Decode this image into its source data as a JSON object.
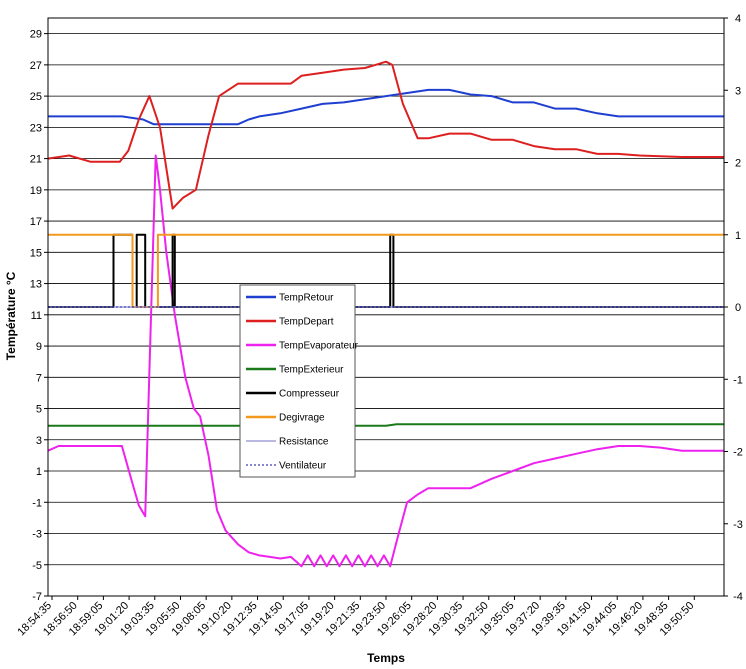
{
  "chart_data": {
    "type": "line",
    "xlabel": "Temps",
    "ylabel": "Température °C",
    "ylim": [
      -7,
      30
    ],
    "y2lim": [
      -4,
      4
    ],
    "yticks": [
      "-7",
      "-5",
      "-3",
      "-1",
      "1",
      "3",
      "5",
      "7",
      "9",
      "11",
      "13",
      "15",
      "17",
      "19",
      "21",
      "23",
      "25",
      "27",
      "29"
    ],
    "y2ticks": [
      "-4",
      "-3",
      "-2",
      "-1",
      "0",
      "1",
      "2",
      "3",
      "4"
    ],
    "x_tick_labels": [
      "18:54:35",
      "18:56:50",
      "18:59:05",
      "19:01:20",
      "19:03:35",
      "19:05:50",
      "19:08:05",
      "19:10:20",
      "19:12:35",
      "19:14:50",
      "19:17:05",
      "19:19:20",
      "19:21:35",
      "19:23:50",
      "19:26:05",
      "19:28:20",
      "19:30:35",
      "19:32:50",
      "19:35:05",
      "19:37:20",
      "19:39:35",
      "19:41:50",
      "19:44:05",
      "19:46:20",
      "19:48:35",
      "19:50:50"
    ],
    "grid": "horizontal",
    "legend_position": "center-left",
    "series": [
      {
        "name": "TempRetour",
        "color": "#1f3fd0",
        "axis": "left",
        "style": "solid",
        "points": [
          [
            0,
            23.7
          ],
          [
            3.5,
            23.7
          ],
          [
            4.5,
            23.5
          ],
          [
            5,
            23.2
          ],
          [
            9,
            23.2
          ],
          [
            9.5,
            23.5
          ],
          [
            10,
            23.7
          ],
          [
            11,
            23.9
          ],
          [
            12,
            24.2
          ],
          [
            13,
            24.5
          ],
          [
            14,
            24.6
          ],
          [
            15,
            24.8
          ],
          [
            16,
            25.0
          ],
          [
            17,
            25.2
          ],
          [
            18,
            25.4
          ],
          [
            19,
            25.4
          ],
          [
            20,
            25.1
          ],
          [
            21,
            25.0
          ],
          [
            22,
            24.6
          ],
          [
            23,
            24.6
          ],
          [
            24,
            24.2
          ],
          [
            25,
            24.2
          ],
          [
            26,
            23.9
          ],
          [
            27,
            23.7
          ],
          [
            32,
            23.7
          ]
        ]
      },
      {
        "name": "TempDepart",
        "color": "#dd1f1f",
        "axis": "left",
        "style": "solid",
        "points": [
          [
            0,
            21.0
          ],
          [
            1,
            21.2
          ],
          [
            2,
            20.8
          ],
          [
            3.4,
            20.8
          ],
          [
            3.8,
            21.5
          ],
          [
            4.3,
            23.5
          ],
          [
            4.8,
            25.0
          ],
          [
            5.3,
            23.0
          ],
          [
            5.9,
            17.8
          ],
          [
            6.4,
            18.5
          ],
          [
            7,
            19.0
          ],
          [
            7.6,
            22.5
          ],
          [
            8.1,
            25.0
          ],
          [
            9,
            25.8
          ],
          [
            11.5,
            25.8
          ],
          [
            12,
            26.3
          ],
          [
            13,
            26.5
          ],
          [
            14,
            26.7
          ],
          [
            15,
            26.8
          ],
          [
            15.5,
            27.0
          ],
          [
            16,
            27.2
          ],
          [
            16.3,
            27.0
          ],
          [
            16.8,
            24.5
          ],
          [
            17.5,
            22.3
          ],
          [
            18,
            22.3
          ],
          [
            19,
            22.6
          ],
          [
            20,
            22.6
          ],
          [
            21,
            22.2
          ],
          [
            22,
            22.2
          ],
          [
            23,
            21.8
          ],
          [
            24,
            21.6
          ],
          [
            25,
            21.6
          ],
          [
            26,
            21.3
          ],
          [
            27,
            21.3
          ],
          [
            28,
            21.2
          ],
          [
            30,
            21.1
          ],
          [
            32,
            21.1
          ]
        ]
      },
      {
        "name": "TempEvaporateur",
        "color": "#ee22ee",
        "axis": "left",
        "style": "solid",
        "points": [
          [
            0,
            2.3
          ],
          [
            0.5,
            2.6
          ],
          [
            3.5,
            2.6
          ],
          [
            4,
            0.2
          ],
          [
            4.3,
            -1.2
          ],
          [
            4.6,
            -1.9
          ],
          [
            4.9,
            12.0
          ],
          [
            5.1,
            21.2
          ],
          [
            5.3,
            19.0
          ],
          [
            5.6,
            15.0
          ],
          [
            6,
            11.0
          ],
          [
            6.5,
            7.0
          ],
          [
            6.9,
            5.0
          ],
          [
            7.2,
            4.5
          ],
          [
            7.6,
            2.0
          ],
          [
            8,
            -1.5
          ],
          [
            8.4,
            -2.8
          ],
          [
            9,
            -3.7
          ],
          [
            9.5,
            -4.2
          ],
          [
            10,
            -4.4
          ],
          [
            10.5,
            -4.5
          ],
          [
            11,
            -4.6
          ],
          [
            11.5,
            -4.5
          ],
          [
            12,
            -5.1
          ],
          [
            12.3,
            -4.4
          ],
          [
            12.6,
            -5.1
          ],
          [
            12.9,
            -4.4
          ],
          [
            13.2,
            -5.1
          ],
          [
            13.5,
            -4.4
          ],
          [
            13.8,
            -5.1
          ],
          [
            14.1,
            -4.4
          ],
          [
            14.4,
            -5.1
          ],
          [
            14.7,
            -4.4
          ],
          [
            15,
            -5.1
          ],
          [
            15.3,
            -4.4
          ],
          [
            15.6,
            -5.1
          ],
          [
            15.9,
            -4.4
          ],
          [
            16.2,
            -5.1
          ],
          [
            16.6,
            -3.0
          ],
          [
            17,
            -1.0
          ],
          [
            17.5,
            -0.5
          ],
          [
            18,
            -0.1
          ],
          [
            20,
            -0.1
          ],
          [
            21,
            0.5
          ],
          [
            22,
            1.0
          ],
          [
            23,
            1.5
          ],
          [
            24,
            1.8
          ],
          [
            25,
            2.1
          ],
          [
            26,
            2.4
          ],
          [
            27,
            2.6
          ],
          [
            28,
            2.6
          ],
          [
            29,
            2.5
          ],
          [
            30,
            2.3
          ],
          [
            32,
            2.3
          ]
        ]
      },
      {
        "name": "TempExterieur",
        "color": "#1a7a1a",
        "axis": "left",
        "style": "solid",
        "points": [
          [
            0,
            3.9
          ],
          [
            16,
            3.9
          ],
          [
            16.5,
            4.0
          ],
          [
            32,
            4.0
          ]
        ]
      },
      {
        "name": "Compresseur",
        "color": "#000000",
        "axis": "right",
        "style": "solid",
        "points": [
          [
            0,
            0
          ],
          [
            3.1,
            0
          ],
          [
            3.1,
            1
          ],
          [
            4.0,
            1
          ],
          [
            4.0,
            0
          ],
          [
            4.2,
            0
          ],
          [
            4.2,
            1
          ],
          [
            4.6,
            1
          ],
          [
            4.6,
            0
          ],
          [
            5.9,
            0
          ],
          [
            5.9,
            1
          ],
          [
            6.0,
            1
          ],
          [
            6.0,
            0
          ],
          [
            16.2,
            0
          ],
          [
            16.2,
            1
          ],
          [
            16.35,
            1
          ],
          [
            16.35,
            0
          ],
          [
            32,
            0
          ]
        ]
      },
      {
        "name": "Degivrage",
        "color": "#f39a1e",
        "axis": "right",
        "style": "solid",
        "points": [
          [
            0,
            1
          ],
          [
            4.0,
            1
          ],
          [
            4.0,
            0
          ],
          [
            5.2,
            0
          ],
          [
            5.2,
            1
          ],
          [
            32,
            1
          ]
        ]
      },
      {
        "name": "Resistance",
        "color": "#8f8fcf",
        "axis": "right",
        "style": "solid",
        "points": [
          [
            0,
            0
          ],
          [
            32,
            0
          ]
        ]
      },
      {
        "name": "Ventilateur",
        "color": "#3d3dbb",
        "axis": "right",
        "style": "dotted",
        "points": [
          [
            0,
            0
          ],
          [
            32,
            0
          ]
        ]
      }
    ]
  }
}
